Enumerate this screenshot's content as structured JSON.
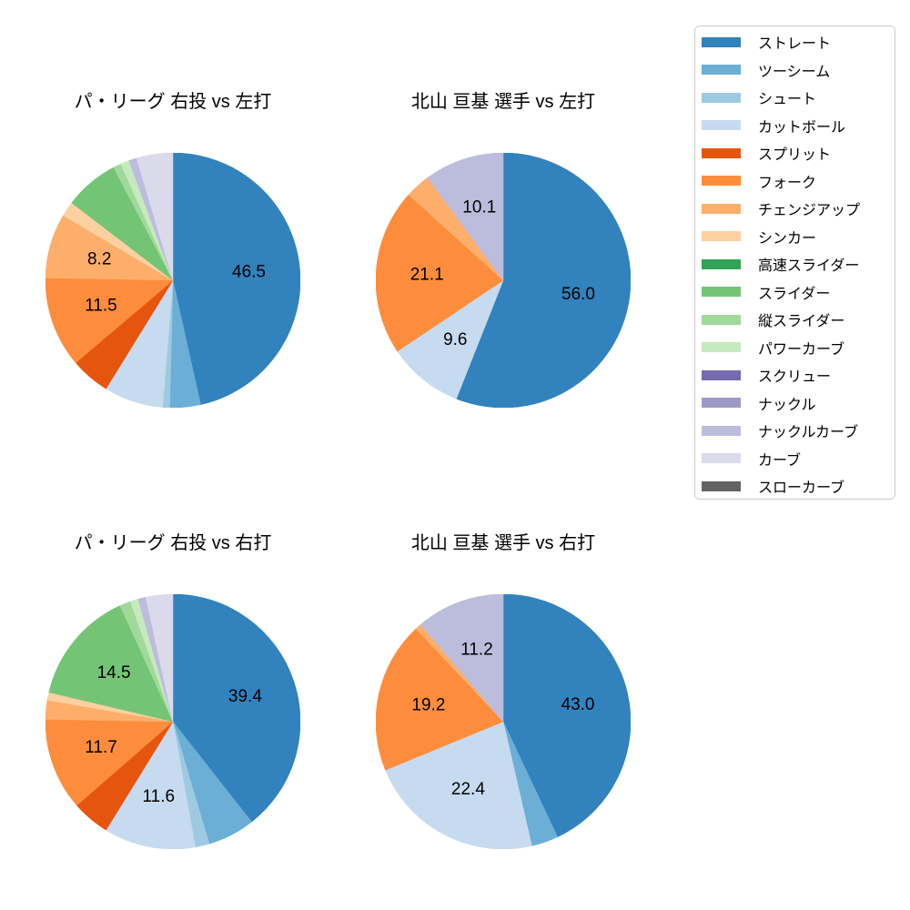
{
  "figure": {
    "background": "#ffffff",
    "text_color": "#000000"
  },
  "chart_meta": {
    "type": "pie",
    "start_angle": "top",
    "direction": "clockwise",
    "pct_label_distance": 0.6,
    "label_threshold_pct": 8,
    "label_format": "one_decimal",
    "legend_position": "upper right, outside charts"
  },
  "chart_data": [
    {
      "type": "pie",
      "title": "パ・リーグ 右投 vs 左打",
      "slices": [
        {
          "label": "ストレート",
          "value": 46.5,
          "color": "#3182bd"
        },
        {
          "label": "ツーシーム",
          "value": 3.9,
          "color": "#6baed6"
        },
        {
          "label": "シュート",
          "value": 0.9,
          "color": "#9ecae1"
        },
        {
          "label": "カットボール",
          "value": 7.5,
          "color": "#c6dbef"
        },
        {
          "label": "スプリット",
          "value": 5.0,
          "color": "#e6550d"
        },
        {
          "label": "フォーク",
          "value": 11.5,
          "color": "#fd8d3c"
        },
        {
          "label": "チェンジアップ",
          "value": 8.2,
          "color": "#fdae6b"
        },
        {
          "label": "シンカー",
          "value": 1.9,
          "color": "#fdd0a2"
        },
        {
          "label": "スライダー",
          "value": 6.9,
          "color": "#74c476"
        },
        {
          "label": "縦スライダー",
          "value": 1.0,
          "color": "#a1d99b"
        },
        {
          "label": "パワーカーブ",
          "value": 1.1,
          "color": "#c7e9c0"
        },
        {
          "label": "ナックルカーブ",
          "value": 1.0,
          "color": "#bcbddc"
        },
        {
          "label": "カーブ",
          "value": 4.6,
          "color": "#dadaeb"
        }
      ],
      "visible_pct_labels": [
        "46.5",
        "11.5",
        "8.2"
      ]
    },
    {
      "type": "pie",
      "title": "北山 亘基 選手 vs 左打",
      "slices": [
        {
          "label": "ストレート",
          "value": 56.0,
          "color": "#3182bd"
        },
        {
          "label": "カットボール",
          "value": 9.6,
          "color": "#c6dbef"
        },
        {
          "label": "フォーク",
          "value": 21.1,
          "color": "#fd8d3c"
        },
        {
          "label": "チェンジアップ",
          "value": 3.2,
          "color": "#fdae6b"
        },
        {
          "label": "ナックルカーブ",
          "value": 10.1,
          "color": "#bcbddc"
        }
      ],
      "visible_pct_labels": [
        "56.0",
        "9.6",
        "21.1",
        "10.1"
      ]
    },
    {
      "type": "pie",
      "title": "パ・リーグ 右投 vs 右打",
      "slices": [
        {
          "label": "ストレート",
          "value": 39.4,
          "color": "#3182bd"
        },
        {
          "label": "ツーシーム",
          "value": 6.0,
          "color": "#6baed6"
        },
        {
          "label": "シュート",
          "value": 1.8,
          "color": "#9ecae1"
        },
        {
          "label": "カットボール",
          "value": 11.6,
          "color": "#c6dbef"
        },
        {
          "label": "スプリット",
          "value": 4.8,
          "color": "#e6550d"
        },
        {
          "label": "フォーク",
          "value": 11.7,
          "color": "#fd8d3c"
        },
        {
          "label": "チェンジアップ",
          "value": 2.4,
          "color": "#fdae6b"
        },
        {
          "label": "シンカー",
          "value": 1.0,
          "color": "#fdd0a2"
        },
        {
          "label": "スライダー",
          "value": 14.5,
          "color": "#74c476"
        },
        {
          "label": "縦スライダー",
          "value": 1.4,
          "color": "#a1d99b"
        },
        {
          "label": "パワーカーブ",
          "value": 1.0,
          "color": "#c7e9c0"
        },
        {
          "label": "ナックルカーブ",
          "value": 1.0,
          "color": "#bcbddc"
        },
        {
          "label": "カーブ",
          "value": 3.4,
          "color": "#dadaeb"
        }
      ],
      "visible_pct_labels": [
        "39.4",
        "11.6",
        "11.7",
        "14.5"
      ]
    },
    {
      "type": "pie",
      "title": "北山 亘基 選手 vs 右打",
      "slices": [
        {
          "label": "ストレート",
          "value": 43.0,
          "color": "#3182bd"
        },
        {
          "label": "ツーシーム",
          "value": 3.4,
          "color": "#6baed6"
        },
        {
          "label": "カットボール",
          "value": 22.4,
          "color": "#c6dbef"
        },
        {
          "label": "フォーク",
          "value": 19.2,
          "color": "#fd8d3c"
        },
        {
          "label": "チェンジアップ",
          "value": 0.8,
          "color": "#fdae6b"
        },
        {
          "label": "ナックルカーブ",
          "value": 11.2,
          "color": "#bcbddc"
        }
      ],
      "visible_pct_labels": [
        "43.0",
        "22.4",
        "19.2",
        "11.2"
      ]
    }
  ],
  "legend": {
    "items": [
      {
        "label": "ストレート",
        "color": "#3182bd"
      },
      {
        "label": "ツーシーム",
        "color": "#6baed6"
      },
      {
        "label": "シュート",
        "color": "#9ecae1"
      },
      {
        "label": "カットボール",
        "color": "#c6dbef"
      },
      {
        "label": "スプリット",
        "color": "#e6550d"
      },
      {
        "label": "フォーク",
        "color": "#fd8d3c"
      },
      {
        "label": "チェンジアップ",
        "color": "#fdae6b"
      },
      {
        "label": "シンカー",
        "color": "#fdd0a2"
      },
      {
        "label": "高速スライダー",
        "color": "#31a354"
      },
      {
        "label": "スライダー",
        "color": "#74c476"
      },
      {
        "label": "縦スライダー",
        "color": "#a1d99b"
      },
      {
        "label": "パワーカーブ",
        "color": "#c7e9c0"
      },
      {
        "label": "スクリュー",
        "color": "#756bb1"
      },
      {
        "label": "ナックル",
        "color": "#9e9ac8"
      },
      {
        "label": "ナックルカーブ",
        "color": "#bcbddc"
      },
      {
        "label": "カーブ",
        "color": "#dadaeb"
      },
      {
        "label": "スローカーブ",
        "color": "#636363"
      }
    ]
  }
}
